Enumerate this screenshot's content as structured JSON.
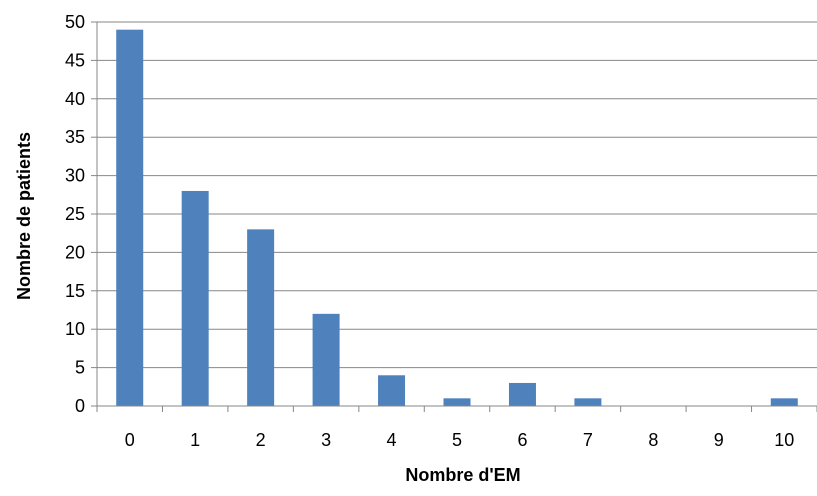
{
  "chart_data": {
    "type": "bar",
    "categories": [
      "0",
      "1",
      "2",
      "3",
      "4",
      "5",
      "6",
      "7",
      "8",
      "9",
      "10"
    ],
    "values": [
      49,
      28,
      23,
      12,
      4,
      1,
      3,
      1,
      0,
      0,
      1
    ],
    "xlabel": "Nombre d'EM",
    "ylabel": "Nombre de patients",
    "ylim": [
      0,
      50
    ],
    "yticks": [
      0,
      5,
      10,
      15,
      20,
      25,
      30,
      35,
      40,
      45,
      50
    ],
    "grid": "horizontal",
    "legend": "none",
    "colors": {
      "bar": "#4f81bd",
      "grid": "#878787",
      "axis": "#878787"
    }
  }
}
